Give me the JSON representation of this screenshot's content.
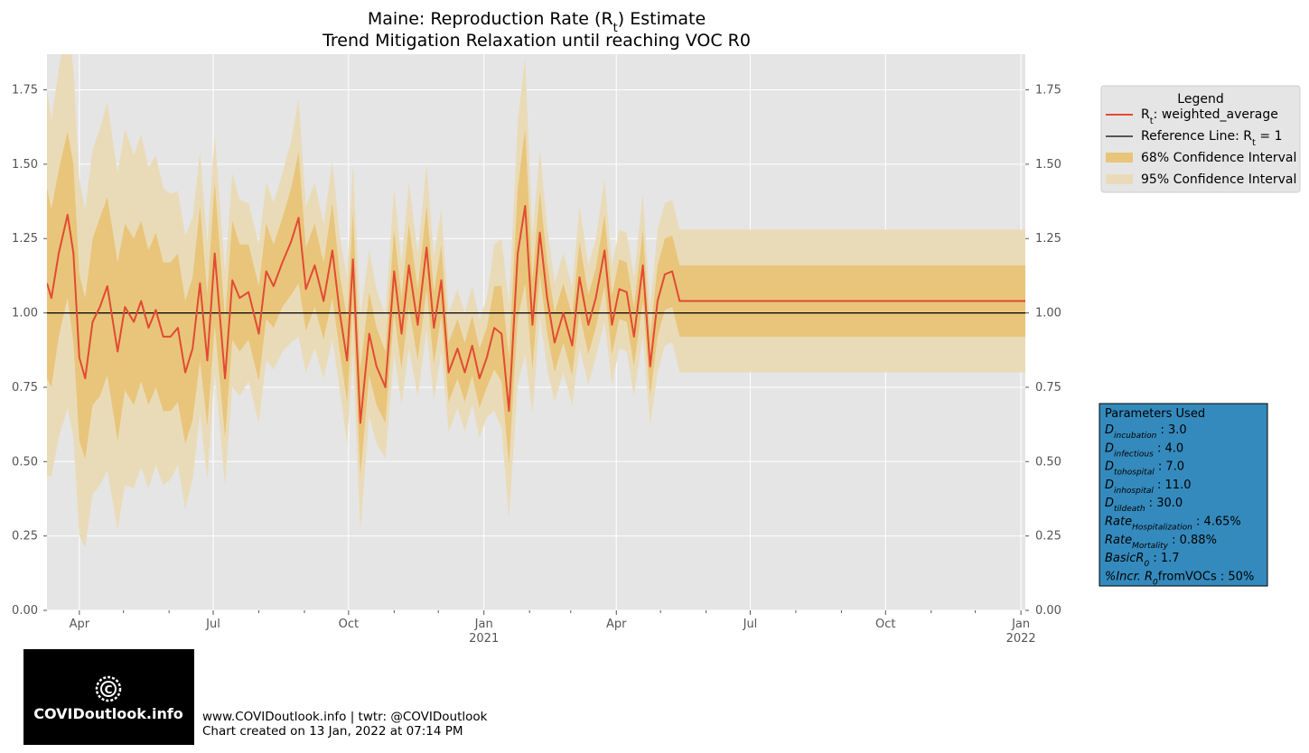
{
  "chart_data": {
    "type": "line",
    "title": "Maine: Reproduction Rate (R",
    "title_sub": "t",
    "title_end": ") Estimate",
    "subtitle": "Trend Mitigation Relaxation until reaching VOC R0",
    "ylim": [
      0,
      1.87
    ],
    "y_ticks": [
      0.0,
      0.25,
      0.5,
      0.75,
      1.0,
      1.25,
      1.5,
      1.75
    ],
    "y_tick_labels": [
      "0.00",
      "0.25",
      "0.50",
      "0.75",
      "1.00",
      "1.25",
      "1.50",
      "1.75"
    ],
    "x_range": [
      "2020-03-10",
      "2022-01-04"
    ],
    "x_ticks": [
      {
        "date": "2020-04-01",
        "label": "Apr",
        "year": ""
      },
      {
        "date": "2020-07-01",
        "label": "Jul",
        "year": ""
      },
      {
        "date": "2020-10-01",
        "label": "Oct",
        "year": ""
      },
      {
        "date": "2021-01-01",
        "label": "Jan",
        "year": "2021"
      },
      {
        "date": "2021-04-01",
        "label": "Apr",
        "year": ""
      },
      {
        "date": "2021-07-01",
        "label": "Jul",
        "year": ""
      },
      {
        "date": "2021-10-01",
        "label": "Oct",
        "year": ""
      },
      {
        "date": "2022-01-01",
        "label": "Jan",
        "year": "2022"
      }
    ],
    "minor_ticks": [
      "2020-05-01",
      "2020-06-01",
      "2020-08-01",
      "2020-09-01",
      "2020-11-01",
      "2020-12-01",
      "2021-02-01",
      "2021-03-01",
      "2021-05-01",
      "2021-06-01",
      "2021-08-01",
      "2021-09-01",
      "2021-11-01",
      "2021-12-01"
    ],
    "reference_line": 1.0,
    "grid": true,
    "legend_position": "outside-right-top",
    "series": [
      {
        "name": "weighted_average",
        "color": "#e24a33",
        "x": [
          "2020-03-10",
          "2020-03-13",
          "2020-03-18",
          "2020-03-24",
          "2020-03-28",
          "2020-04-01",
          "2020-04-05",
          "2020-04-10",
          "2020-04-15",
          "2020-04-20",
          "2020-04-27",
          "2020-05-02",
          "2020-05-08",
          "2020-05-13",
          "2020-05-18",
          "2020-05-23",
          "2020-05-28",
          "2020-06-02",
          "2020-06-07",
          "2020-06-12",
          "2020-06-17",
          "2020-06-22",
          "2020-06-27",
          "2020-07-02",
          "2020-07-09",
          "2020-07-14",
          "2020-07-19",
          "2020-07-25",
          "2020-08-01",
          "2020-08-06",
          "2020-08-11",
          "2020-08-17",
          "2020-08-23",
          "2020-08-28",
          "2020-09-02",
          "2020-09-08",
          "2020-09-14",
          "2020-09-20",
          "2020-09-25",
          "2020-09-30",
          "2020-10-04",
          "2020-10-09",
          "2020-10-15",
          "2020-10-20",
          "2020-10-26",
          "2020-11-01",
          "2020-11-06",
          "2020-11-11",
          "2020-11-17",
          "2020-11-23",
          "2020-11-28",
          "2020-12-03",
          "2020-12-08",
          "2020-12-14",
          "2020-12-19",
          "2020-12-24",
          "2020-12-29",
          "2021-01-03",
          "2021-01-08",
          "2021-01-13",
          "2021-01-18",
          "2021-01-24",
          "2021-01-29",
          "2021-02-03",
          "2021-02-08",
          "2021-02-13",
          "2021-02-18",
          "2021-02-24",
          "2021-03-02",
          "2021-03-07",
          "2021-03-13",
          "2021-03-18",
          "2021-03-24",
          "2021-03-29",
          "2021-04-03",
          "2021-04-08",
          "2021-04-13",
          "2021-04-19",
          "2021-04-24",
          "2021-04-29",
          "2021-05-04",
          "2021-05-09",
          "2021-05-14",
          "2021-05-19",
          "2021-05-24",
          "2021-05-29",
          "2021-06-04",
          "2021-06-09",
          "2021-06-15",
          "2021-06-20",
          "2021-06-25",
          "2021-06-30",
          "2021-07-06",
          "2021-07-12",
          "2021-07-17",
          "2021-07-22",
          "2021-07-28",
          "2021-08-02",
          "2021-08-07",
          "2021-08-12",
          "2021-08-18",
          "2021-08-23",
          "2021-08-28",
          "2021-09-02",
          "2021-09-07",
          "2021-09-12",
          "2021-09-17",
          "2021-09-22",
          "2021-09-27",
          "2021-10-02",
          "2021-10-07",
          "2021-10-12",
          "2021-10-17",
          "2021-10-23",
          "2021-10-28",
          "2021-11-02",
          "2021-11-07",
          "2021-11-12",
          "2021-11-17",
          "2021-11-22",
          "2021-11-27",
          "2021-12-02",
          "2021-12-07",
          "2021-12-12",
          "2021-12-17",
          "2021-12-22",
          "2021-12-27",
          "2022-01-01",
          "2022-01-04"
        ],
        "values": [
          1.1,
          1.05,
          1.2,
          1.33,
          1.2,
          0.85,
          0.78,
          0.97,
          1.02,
          1.09,
          0.87,
          1.02,
          0.97,
          1.04,
          0.95,
          1.01,
          0.92,
          0.92,
          0.95,
          0.8,
          0.88,
          1.1,
          0.84,
          1.2,
          0.78,
          1.11,
          1.05,
          1.07,
          0.93,
          1.14,
          1.09,
          1.17,
          1.24,
          1.32,
          1.08,
          1.16,
          1.04,
          1.21,
          1.0,
          0.84,
          1.18,
          0.63,
          0.93,
          0.82,
          0.75,
          1.14,
          0.93,
          1.16,
          0.96,
          1.22,
          0.95,
          1.11,
          0.8,
          0.88,
          0.8,
          0.89,
          0.78,
          0.85,
          0.95,
          0.93,
          0.67,
          1.2,
          1.36,
          0.96,
          1.27,
          1.05,
          0.9,
          1.0,
          0.89,
          1.12,
          0.96,
          1.05,
          1.21,
          0.96,
          1.08,
          1.07,
          0.92,
          1.16,
          0.82,
          1.04,
          1.13,
          1.14,
          1.04,
          1.04,
          1.04,
          1.04,
          1.04,
          1.04,
          1.04,
          1.04,
          1.04,
          1.04,
          1.04,
          1.04,
          1.04,
          1.04,
          1.04,
          1.04,
          1.04,
          1.04,
          1.04,
          1.04,
          1.04,
          1.04,
          1.04,
          1.04,
          1.04,
          1.04,
          1.04,
          1.04,
          1.04,
          1.04,
          1.04,
          1.04,
          1.04,
          1.04,
          1.04,
          1.04,
          1.04,
          1.04,
          1.04,
          1.04,
          1.04,
          1.04,
          1.04,
          1.04,
          1.04,
          1.04,
          1.04
        ]
      }
    ],
    "ci68_halfwidth": [
      0.32,
      0.3,
      0.28,
      0.28,
      0.3,
      0.28,
      0.27,
      0.28,
      0.3,
      0.3,
      0.3,
      0.28,
      0.28,
      0.27,
      0.26,
      0.26,
      0.25,
      0.25,
      0.25,
      0.24,
      0.24,
      0.26,
      0.22,
      0.24,
      0.2,
      0.2,
      0.18,
      0.16,
      0.16,
      0.16,
      0.14,
      0.15,
      0.18,
      0.22,
      0.14,
      0.14,
      0.13,
      0.16,
      0.13,
      0.14,
      0.16,
      0.18,
      0.14,
      0.13,
      0.12,
      0.14,
      0.12,
      0.14,
      0.12,
      0.14,
      0.12,
      0.12,
      0.1,
      0.1,
      0.1,
      0.1,
      0.1,
      0.1,
      0.14,
      0.16,
      0.18,
      0.22,
      0.26,
      0.15,
      0.14,
      0.12,
      0.1,
      0.1,
      0.1,
      0.12,
      0.1,
      0.1,
      0.12,
      0.1,
      0.1,
      0.1,
      0.1,
      0.12,
      0.1,
      0.12,
      0.12,
      0.12,
      0.12,
      0.12,
      0.12,
      0.12,
      0.12,
      0.12,
      0.12,
      0.12,
      0.12,
      0.12,
      0.12,
      0.12,
      0.12,
      0.12,
      0.12,
      0.12,
      0.12,
      0.12,
      0.12,
      0.12,
      0.12,
      0.12,
      0.12,
      0.12,
      0.12,
      0.12,
      0.12,
      0.12,
      0.12,
      0.12,
      0.12,
      0.12,
      0.12,
      0.12,
      0.12,
      0.12,
      0.12,
      0.12,
      0.12,
      0.12,
      0.12,
      0.12,
      0.12,
      0.12,
      0.12,
      0.12,
      0.12,
      0.12,
      0.12
    ],
    "ci95_halfwidth": [
      0.65,
      0.6,
      0.62,
      0.65,
      0.62,
      0.6,
      0.57,
      0.58,
      0.6,
      0.62,
      0.6,
      0.6,
      0.56,
      0.56,
      0.54,
      0.52,
      0.5,
      0.48,
      0.46,
      0.46,
      0.44,
      0.44,
      0.4,
      0.4,
      0.36,
      0.36,
      0.33,
      0.3,
      0.3,
      0.3,
      0.28,
      0.3,
      0.34,
      0.4,
      0.28,
      0.28,
      0.26,
      0.3,
      0.26,
      0.28,
      0.32,
      0.36,
      0.28,
      0.26,
      0.24,
      0.28,
      0.24,
      0.28,
      0.24,
      0.28,
      0.24,
      0.24,
      0.2,
      0.2,
      0.2,
      0.2,
      0.2,
      0.2,
      0.28,
      0.32,
      0.36,
      0.44,
      0.5,
      0.3,
      0.28,
      0.24,
      0.2,
      0.2,
      0.2,
      0.24,
      0.2,
      0.2,
      0.24,
      0.2,
      0.2,
      0.2,
      0.2,
      0.24,
      0.2,
      0.24,
      0.24,
      0.24,
      0.24,
      0.24,
      0.24,
      0.24,
      0.24,
      0.24,
      0.24,
      0.24,
      0.24,
      0.24,
      0.24,
      0.24,
      0.24,
      0.24,
      0.24,
      0.24,
      0.24,
      0.24,
      0.24,
      0.24,
      0.24,
      0.24,
      0.24,
      0.24,
      0.24,
      0.24,
      0.24,
      0.24,
      0.24,
      0.24,
      0.24,
      0.24,
      0.24,
      0.24,
      0.24,
      0.24,
      0.24,
      0.24,
      0.24,
      0.24,
      0.24,
      0.24,
      0.24,
      0.24,
      0.24,
      0.24,
      0.24,
      0.24,
      0.24,
      0.24,
      0.24
    ]
  },
  "colors": {
    "line": "#e24a33",
    "ci68": "#e8c57a",
    "ci95": "#eadbb8",
    "plot_bg": "#e5e5e5",
    "params_bg": "#348abd"
  },
  "legend": {
    "title": "Legend",
    "items": [
      {
        "label_pre": "R",
        "label_sub": "t",
        "label_post": ": weighted_average",
        "type": "line",
        "color": "#e24a33"
      },
      {
        "label_pre": "Reference Line: R",
        "label_sub": "t",
        "label_post": " = 1",
        "type": "line",
        "color": "#000000"
      },
      {
        "label_pre": "68% Confidence Interval",
        "label_sub": "",
        "label_post": "",
        "type": "patch",
        "color": "#e8c57a"
      },
      {
        "label_pre": "95% Confidence Interval",
        "label_sub": "",
        "label_post": "",
        "type": "patch",
        "color": "#eadbb8"
      }
    ]
  },
  "params": {
    "title": "Parameters Used",
    "items": [
      {
        "pre": "D",
        "sub": "incubation",
        "post": " : 3.0"
      },
      {
        "pre": "D",
        "sub": "infectious",
        "post": " : 4.0"
      },
      {
        "pre": "D",
        "sub": "tohospital",
        "post": " : 7.0"
      },
      {
        "pre": "D",
        "sub": "inhospital",
        "post": " : 11.0"
      },
      {
        "pre": "D",
        "sub": "tildeath",
        "post": " : 30.0"
      },
      {
        "pre": "Rate",
        "sub": "Hospitalization",
        "post": " : 4.65%"
      },
      {
        "pre": "Rate",
        "sub": "Mortality",
        "post": " : 0.88%"
      },
      {
        "pre": "BasicR",
        "sub": "0",
        "post": " : 1.7"
      },
      {
        "pre": "%Incr. R",
        "sub": "0",
        "post": "fromVOCs : 50%"
      }
    ]
  },
  "logo": {
    "text": "COVIDoutlook.info",
    "icon": "virus-icon"
  },
  "footer": {
    "line1": "www.COVIDoutlook.info | twtr: @COVIDoutlook",
    "line2": "Chart created on 13 Jan, 2022 at 07:14 PM"
  }
}
